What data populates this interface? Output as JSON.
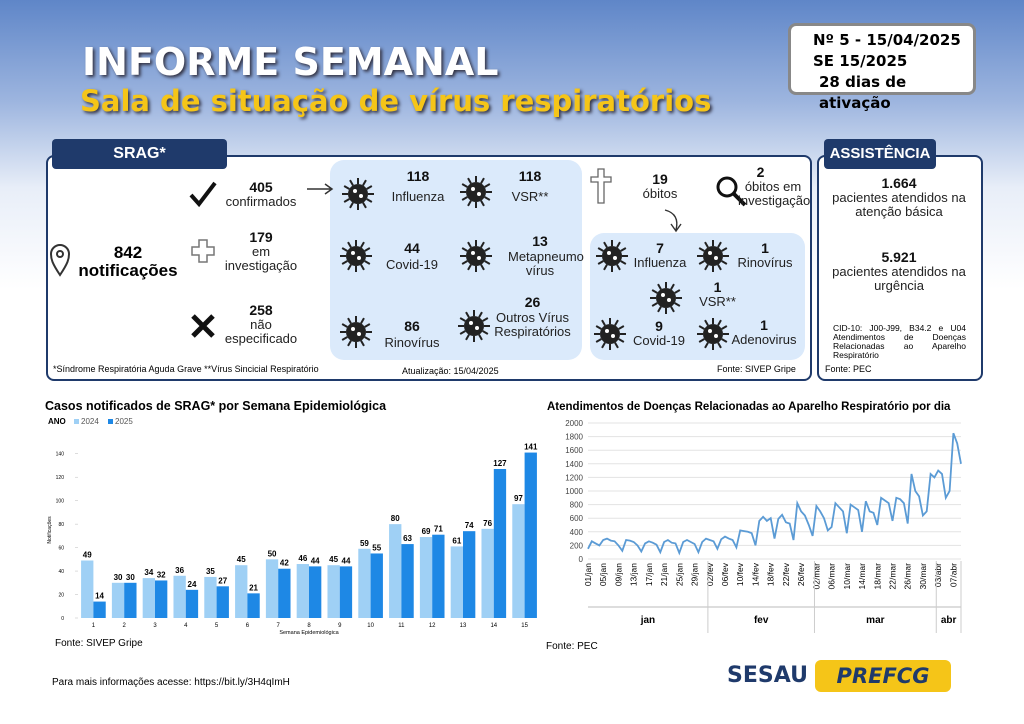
{
  "header": {
    "title": "INFORME SEMANAL",
    "subtitle": "Sala de situação de vírus respiratórios",
    "edition": "Nº 5 - 15/04/2025",
    "week": "SE 15/2025",
    "activation": "28 dias de ativação"
  },
  "srag": {
    "tab": "SRAG*",
    "total": {
      "value": "842",
      "label": "notificações"
    },
    "status": [
      {
        "value": "405",
        "label": "confirmados"
      },
      {
        "value": "179",
        "label": "em investigação"
      },
      {
        "value": "258",
        "label": "não especificado"
      }
    ],
    "viruses": [
      {
        "value": "118",
        "label": "Influenza"
      },
      {
        "value": "118",
        "label": "VSR**"
      },
      {
        "value": "44",
        "label": "Covid-19"
      },
      {
        "value": "13",
        "label": "Metapneumo vírus"
      },
      {
        "value": "86",
        "label": "Rinovírus"
      },
      {
        "value": "26",
        "label": "Outros Vírus Respiratórios"
      }
    ],
    "deaths": {
      "value": "19",
      "label": "óbitos"
    },
    "deaths_investigation": {
      "value": "2",
      "label": "óbitos em investigação"
    },
    "death_viruses": [
      {
        "value": "7",
        "label": "Influenza"
      },
      {
        "value": "1",
        "label": "Rinovírus"
      },
      {
        "value": "1",
        "label": "VSR**"
      },
      {
        "value": "9",
        "label": "Covid-19"
      },
      {
        "value": "1",
        "label": "Adenovirus"
      }
    ],
    "footnote": "*Síndrome Respiratória Aguda Grave **Vírus Sincicial Respiratório",
    "updated": "Atualização: 15/04/2025",
    "source": "Fonte: SIVEP Gripe"
  },
  "assistencia": {
    "tab": "ASSISTÊNCIA",
    "items": [
      {
        "value": "1.664",
        "label": "pacientes atendidos na atenção básica"
      },
      {
        "value": "5.921",
        "label": "pacientes atendidos na urgência"
      }
    ],
    "note": "CID-10: J00-J99, B34.2 e U04 Atendimentos de Doenças Relacionadas ao Aparelho Respiratório",
    "source": "Fonte: PEC"
  },
  "chart_data": [
    {
      "type": "bar",
      "title": "Casos notificados de SRAG* por Semana Epidemiológica",
      "legend_title": "ANO",
      "x_label": "Semana Epidemiológica",
      "y_label": "Notificações",
      "categories": [
        "1",
        "2",
        "3",
        "4",
        "5",
        "6",
        "7",
        "8",
        "9",
        "10",
        "11",
        "12",
        "13",
        "14",
        "15"
      ],
      "series": [
        {
          "name": "2024",
          "color": "#9fd0f5",
          "values": [
            49,
            30,
            34,
            36,
            35,
            45,
            50,
            46,
            45,
            59,
            80,
            69,
            61,
            76,
            97
          ]
        },
        {
          "name": "2025",
          "color": "#1e88e5",
          "values": [
            14,
            30,
            32,
            24,
            27,
            21,
            42,
            44,
            44,
            55,
            63,
            71,
            74,
            127,
            141
          ]
        }
      ],
      "ylim": [
        0,
        150
      ],
      "yticks": [
        0,
        20,
        40,
        60,
        80,
        100,
        120,
        140
      ],
      "source": "Fonte: SIVEP Gripe"
    },
    {
      "type": "line",
      "title": "Atendimentos de Doenças Relacionadas ao Aparelho Respiratório por dia",
      "categories": [
        "01/jan",
        null,
        null,
        null,
        "05/jan",
        null,
        null,
        null,
        "09/jan",
        null,
        null,
        null,
        "13/jan",
        null,
        null,
        null,
        "17/jan",
        null,
        null,
        null,
        "21/jan",
        null,
        null,
        null,
        "25/jan",
        null,
        null,
        null,
        "29/jan",
        null,
        null,
        null,
        "02/fev",
        null,
        null,
        null,
        "06/fev",
        null,
        null,
        null,
        "10/fev",
        null,
        null,
        null,
        "14/fev",
        null,
        null,
        null,
        "18/fev",
        null,
        null,
        null,
        "22/fev",
        null,
        null,
        null,
        "26/fev",
        null,
        null,
        null,
        "02/mar",
        null,
        null,
        null,
        "06/mar",
        null,
        null,
        null,
        "10/mar",
        null,
        null,
        null,
        "14/mar",
        null,
        null,
        null,
        "18/mar",
        null,
        null,
        null,
        "22/mar",
        null,
        null,
        null,
        "26/mar",
        null,
        null,
        null,
        "30/mar",
        null,
        null,
        null,
        "03/abr",
        null,
        null,
        null,
        "07/abr",
        null,
        null
      ],
      "months": [
        "jan",
        "fev",
        "mar",
        "abr"
      ],
      "color": "#5b9bd5",
      "values": [
        150,
        260,
        230,
        200,
        280,
        300,
        270,
        260,
        200,
        120,
        280,
        270,
        250,
        200,
        110,
        230,
        260,
        240,
        210,
        100,
        250,
        280,
        240,
        230,
        90,
        250,
        280,
        250,
        220,
        100,
        250,
        300,
        280,
        260,
        150,
        290,
        330,
        300,
        280,
        170,
        420,
        410,
        400,
        380,
        200,
        560,
        620,
        560,
        600,
        300,
        590,
        650,
        540,
        520,
        280,
        820,
        700,
        640,
        500,
        340,
        780,
        700,
        600,
        420,
        470,
        820,
        760,
        700,
        380,
        800,
        760,
        720,
        400,
        850,
        700,
        680,
        500,
        900,
        860,
        820,
        560,
        900,
        880,
        820,
        520,
        1250,
        1000,
        920,
        640,
        700,
        1250,
        1200,
        1300,
        1250,
        900,
        1000,
        1850,
        1700,
        1400
      ],
      "ylim": [
        0,
        2000
      ],
      "yticks": [
        0,
        200,
        400,
        600,
        800,
        1000,
        1200,
        1400,
        1600,
        1800,
        2000
      ],
      "grid": true,
      "source": "Fonte: PEC"
    }
  ],
  "footer": {
    "link": "Para mais informações acesse: https://bit.ly/3H4qImH",
    "logo_left": "SESAU",
    "logo_right": "PREFCG"
  }
}
